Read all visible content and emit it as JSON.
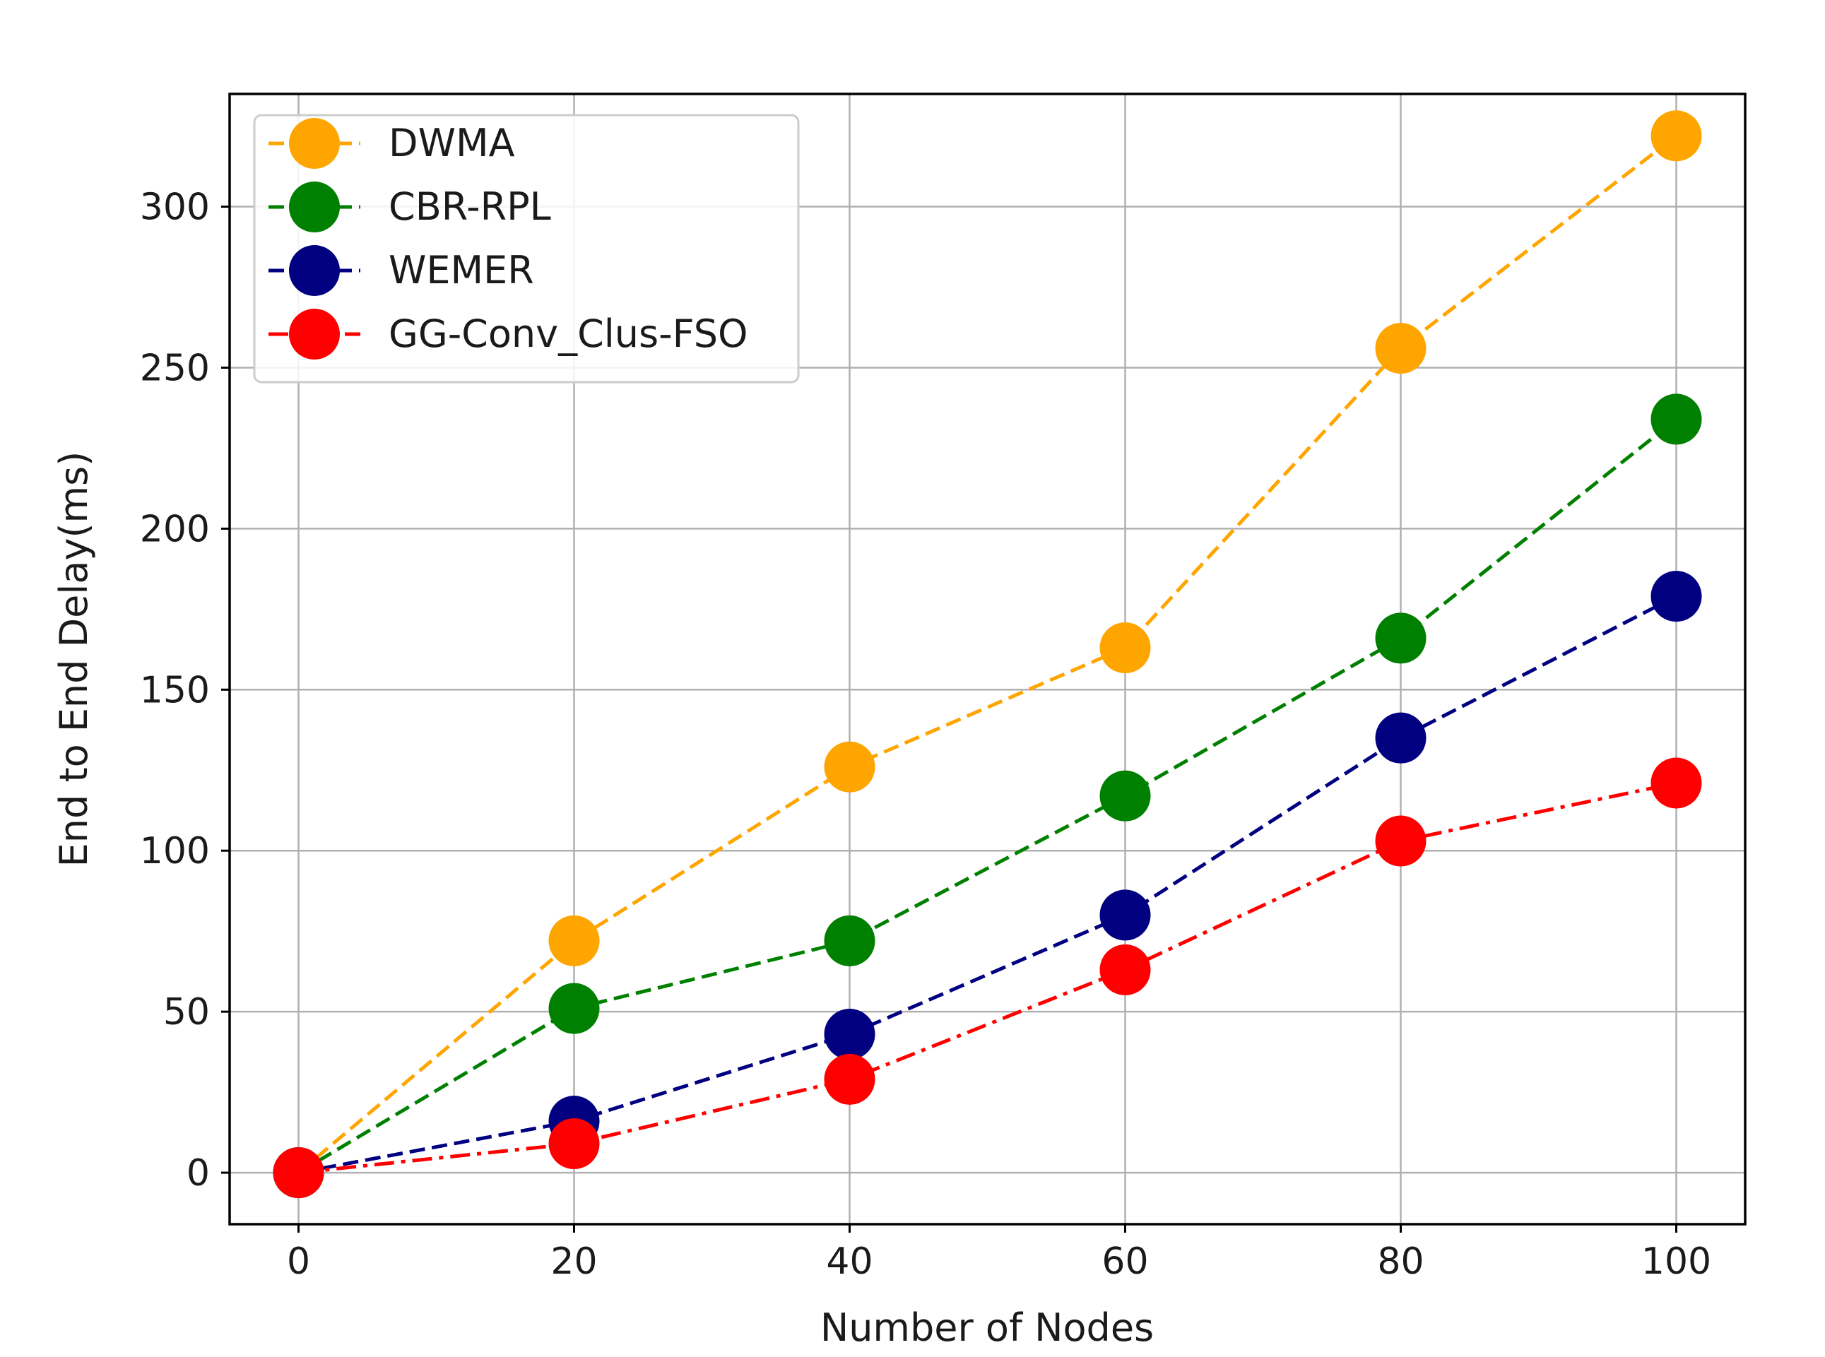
{
  "chart_data": {
    "type": "line",
    "title": "",
    "xlabel": "Number of Nodes",
    "ylabel": "End to End Delay(ms)",
    "x": [
      0,
      20,
      40,
      60,
      80,
      100
    ],
    "xlim": [
      -5,
      105
    ],
    "ylim": [
      -16,
      335
    ],
    "xticks": [
      0,
      20,
      40,
      60,
      80,
      100
    ],
    "yticks": [
      0,
      50,
      100,
      150,
      200,
      250,
      300
    ],
    "grid": true,
    "legend_position": "top-left",
    "series": [
      {
        "name": "DWMA",
        "color": "#FFA500",
        "dash": "dashed",
        "values": [
          0,
          72,
          126,
          163,
          256,
          322
        ]
      },
      {
        "name": "CBR-RPL",
        "color": "#008000",
        "dash": "dashed",
        "values": [
          0,
          51,
          72,
          117,
          166,
          234
        ]
      },
      {
        "name": "WEMER",
        "color": "#000080",
        "dash": "dashed",
        "values": [
          0,
          16,
          43,
          80,
          135,
          179
        ]
      },
      {
        "name": "GG-Conv_Clus-FSO",
        "color": "#FF0000",
        "dash": "dashdot",
        "values": [
          0,
          9,
          29,
          63,
          103,
          121
        ]
      }
    ]
  }
}
